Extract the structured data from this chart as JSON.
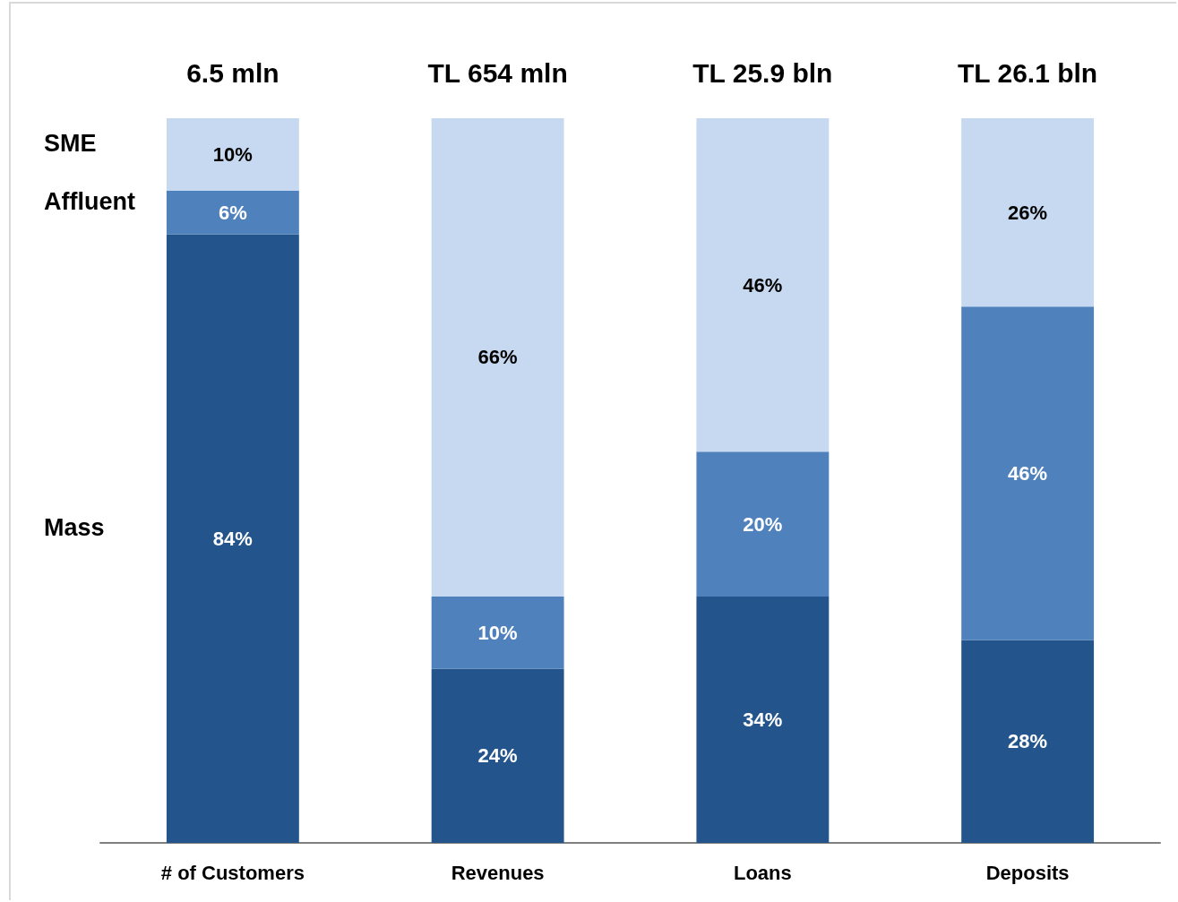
{
  "chart_data": {
    "type": "bar",
    "stacked": true,
    "categories": [
      "# of Customers",
      "Revenues",
      "Loans",
      "Deposits"
    ],
    "series": [
      {
        "name": "Mass",
        "color": "#23558c",
        "values": [
          84,
          24,
          34,
          28
        ],
        "value_labels": [
          "84%",
          "24%",
          "34%",
          "28%"
        ]
      },
      {
        "name": "Affluent",
        "color": "#4f81bd",
        "values": [
          6,
          10,
          20,
          46
        ],
        "value_labels": [
          "6%",
          "10%",
          "20%",
          "46%"
        ]
      },
      {
        "name": "SME",
        "color": "#c6d9f0",
        "values": [
          10,
          66,
          46,
          26
        ],
        "value_labels": [
          "10%",
          "66%",
          "46%",
          "26%"
        ]
      }
    ],
    "annotations": [
      {
        "text": "6.5 mln",
        "x": "# of Customers",
        "y": 100
      },
      {
        "text": "TL 654 mln",
        "x": "Revenues",
        "y": 100
      },
      {
        "text": "TL 25.9 bln",
        "x": "Loans",
        "y": 100
      },
      {
        "text": "TL 26.1 bln",
        "x": "Deposits",
        "y": 100
      }
    ],
    "legend": "left"
  }
}
